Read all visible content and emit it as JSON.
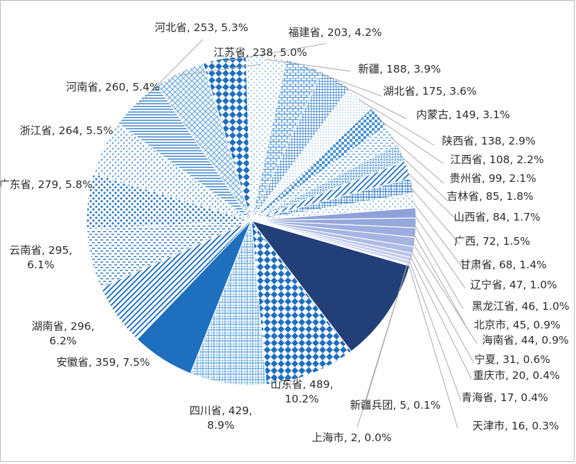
{
  "chart_data": {
    "type": "pie",
    "title": "",
    "slices": [
      {
        "label": "山东省",
        "value": 489,
        "percent": "10.2%",
        "color": "#233f78",
        "pattern": "solid"
      },
      {
        "label": "四川省",
        "value": 429,
        "percent": "8.9%",
        "color": "#1f6fbf",
        "pattern": "diamond"
      },
      {
        "label": "安徽省",
        "value": 359,
        "percent": "7.5%",
        "color": "#5fa3db",
        "pattern": "grid"
      },
      {
        "label": "湖南省",
        "value": 296,
        "percent": "6.2%",
        "color": "#1f6fbf",
        "pattern": "solid"
      },
      {
        "label": "云南省",
        "value": 295,
        "percent": "6.1%",
        "color": "#1f6fbf",
        "pattern": "diag"
      },
      {
        "label": "广东省",
        "value": 279,
        "percent": "5.8%",
        "color": "#2a78c4",
        "pattern": "dash-h"
      },
      {
        "label": "浙江省",
        "value": 264,
        "percent": "5.5%",
        "color": "#2a78c4",
        "pattern": "dots-big"
      },
      {
        "label": "河南省",
        "value": 260,
        "percent": "5.4%",
        "color": "#4b93d3",
        "pattern": "dash-diag"
      },
      {
        "label": "河北省",
        "value": 253,
        "percent": "5.3%",
        "color": "#2a78c4",
        "pattern": "hlines"
      },
      {
        "label": "江苏省",
        "value": 238,
        "percent": "5.0%",
        "color": "#6aa9dc",
        "pattern": "lattice"
      },
      {
        "label": "福建省",
        "value": 203,
        "percent": "4.2%",
        "color": "#1f6fbf",
        "pattern": "diamond"
      },
      {
        "label": "新疆",
        "value": 188,
        "percent": "3.9%",
        "color": "#7ab3e0",
        "pattern": "dots"
      },
      {
        "label": "湖北省",
        "value": 175,
        "percent": "3.6%",
        "color": "#4b93d3",
        "pattern": "brick"
      },
      {
        "label": "内蒙古",
        "value": 149,
        "percent": "3.1%",
        "color": "#2a78c4",
        "pattern": "grid-fine"
      },
      {
        "label": "陕西省",
        "value": 138,
        "percent": "2.9%",
        "color": "#7ab3e0",
        "pattern": "dots-fine"
      },
      {
        "label": "江西省",
        "value": 108,
        "percent": "2.2%",
        "color": "#4b93d3",
        "pattern": "checker"
      },
      {
        "label": "贵州省",
        "value": 99,
        "percent": "2.1%",
        "color": "#5fa3db",
        "pattern": "dash-h"
      },
      {
        "label": "吉林省",
        "value": 85,
        "percent": "1.8%",
        "color": "#4b93d3",
        "pattern": "weave"
      },
      {
        "label": "山西省",
        "value": 84,
        "percent": "1.7%",
        "color": "#2a78c4",
        "pattern": "diag"
      },
      {
        "label": "广西",
        "value": 72,
        "percent": "1.5%",
        "color": "#2a78c4",
        "pattern": "grid"
      },
      {
        "label": "甘肃省",
        "value": 68,
        "percent": "1.4%",
        "color": "#6aa9dc",
        "pattern": "dots"
      },
      {
        "label": "辽宁省",
        "value": 47,
        "percent": "1.0%",
        "color": "#8fa1d9",
        "pattern": "solid"
      },
      {
        "label": "黑龙江省",
        "value": 46,
        "percent": "1.0%",
        "color": "#96a7dc",
        "pattern": "solid"
      },
      {
        "label": "北京市",
        "value": 45,
        "percent": "0.9%",
        "color": "#9eaddf",
        "pattern": "solid"
      },
      {
        "label": "海南省",
        "value": 44,
        "percent": "0.9%",
        "color": "#a7b4e2",
        "pattern": "solid"
      },
      {
        "label": "宁夏",
        "value": 31,
        "percent": "0.6%",
        "color": "#b0bce6",
        "pattern": "solid"
      },
      {
        "label": "重庆市",
        "value": 20,
        "percent": "0.4%",
        "color": "#b9c4ea",
        "pattern": "solid"
      },
      {
        "label": "青海省",
        "value": 17,
        "percent": "0.4%",
        "color": "#c2cbed",
        "pattern": "solid"
      },
      {
        "label": "天津市",
        "value": 16,
        "percent": "0.3%",
        "color": "#cbd3f0",
        "pattern": "solid"
      },
      {
        "label": "新疆兵团",
        "value": 5,
        "percent": "0.1%",
        "color": "#d4dbf3",
        "pattern": "solid"
      },
      {
        "label": "上海市",
        "value": 2,
        "percent": "0.0%",
        "color": "#dde2f6",
        "pattern": "solid"
      }
    ]
  }
}
